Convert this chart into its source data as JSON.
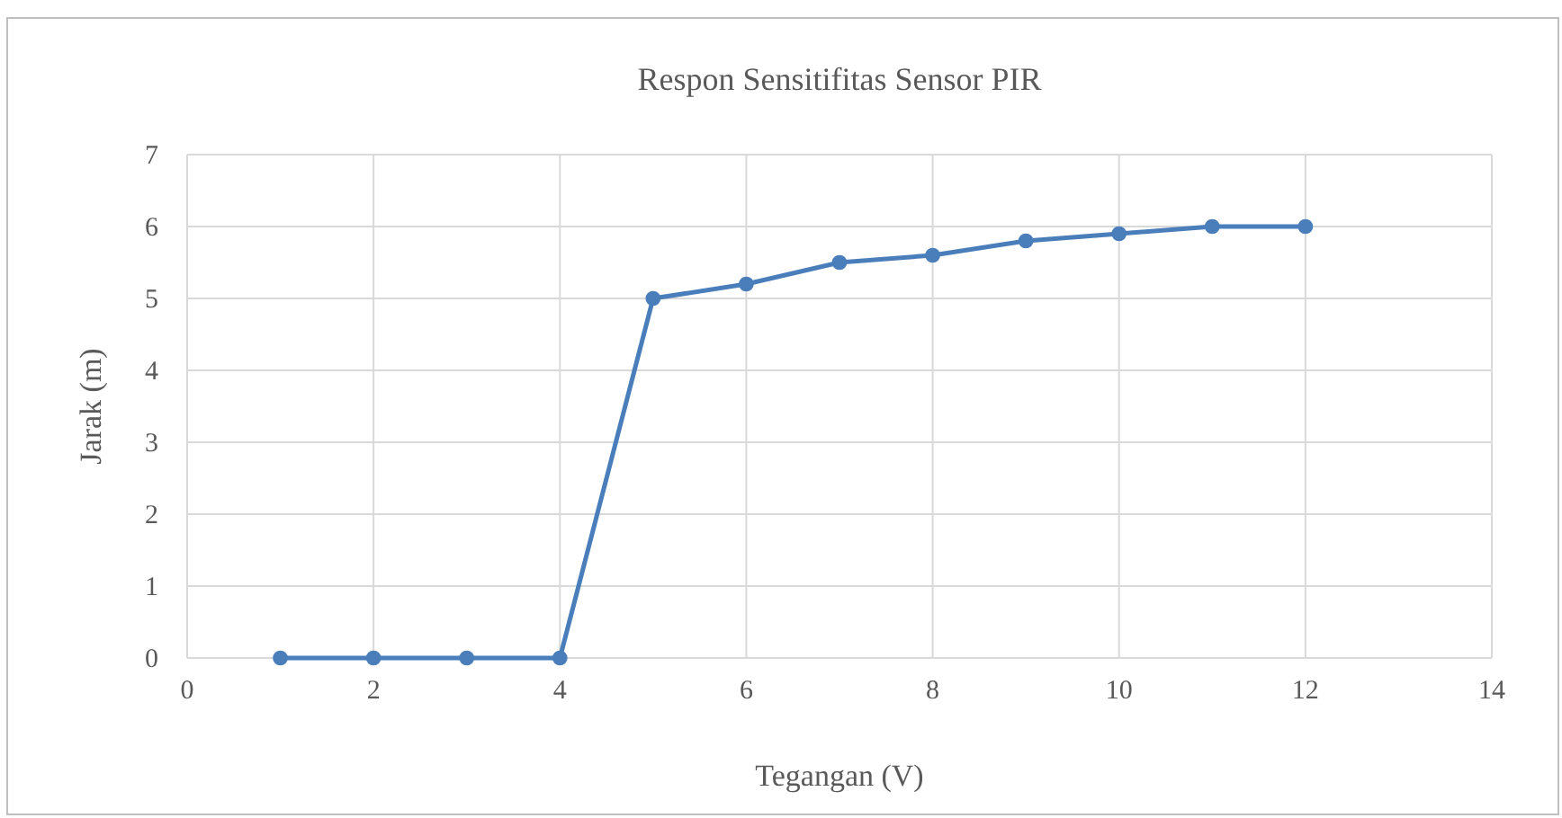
{
  "chart_data": {
    "type": "line",
    "title": "Respon Sensitifitas Sensor PIR",
    "xlabel": "Tegangan (V)",
    "ylabel": "Jarak (m)",
    "x": [
      1,
      2,
      3,
      4,
      5,
      6,
      7,
      8,
      9,
      10,
      11,
      12
    ],
    "series": [
      {
        "color": "#4a7ebb",
        "values": [
          0,
          0,
          0,
          0,
          5,
          5.2,
          5.5,
          5.6,
          5.8,
          5.9,
          6,
          6
        ]
      }
    ],
    "xlim": [
      0,
      14
    ],
    "xticks": [
      0,
      2,
      4,
      6,
      8,
      10,
      12,
      14
    ],
    "ylim": [
      0,
      7
    ],
    "yticks": [
      0,
      1,
      2,
      3,
      4,
      5,
      6,
      7
    ],
    "grid": true,
    "marker": "circle",
    "line_style": "solid"
  }
}
